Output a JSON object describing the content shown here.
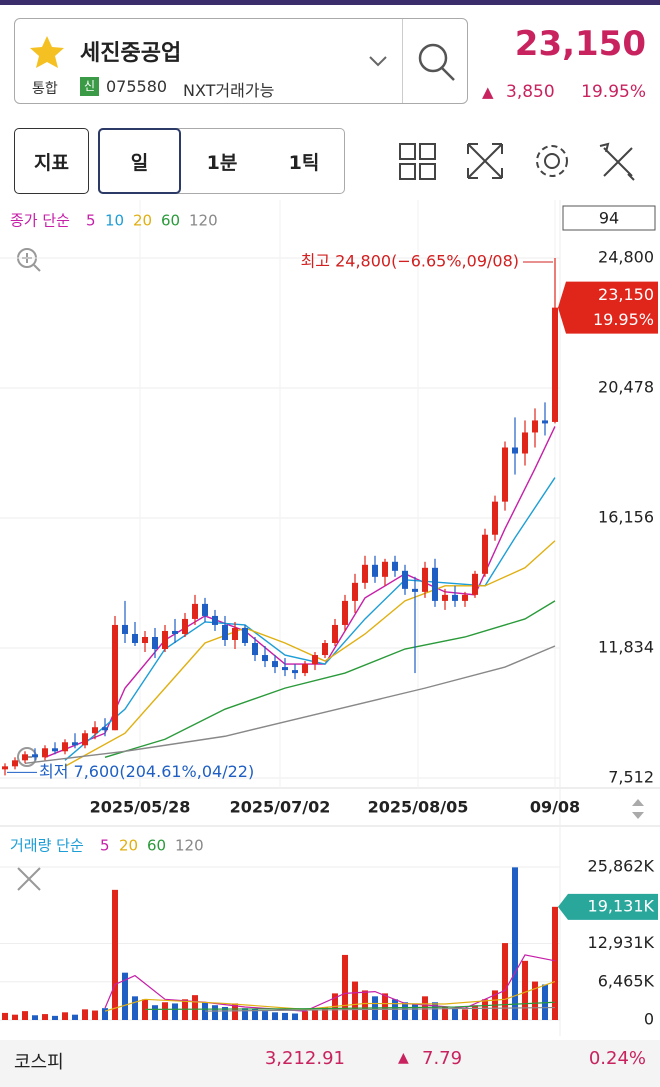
{
  "header": {
    "name": "세진중공업",
    "market": "통합",
    "badge": "신",
    "code": "075580",
    "nxt": "NXT거래가능",
    "price": "23,150",
    "change": "3,850",
    "change_pct": "19.95%"
  },
  "toolbar": {
    "buttons": [
      "지표",
      "일",
      "1분",
      "1틱"
    ],
    "count": "94"
  },
  "chart_data": [
    {
      "type": "candlestick",
      "legend_title": "종가 단순",
      "up_color": "#e0261b",
      "down_color": "#1f5fc4",
      "ohlc": [
        [
          7800,
          8000,
          7600,
          7900
        ],
        [
          7900,
          8200,
          7800,
          8100
        ],
        [
          8100,
          8400,
          8000,
          8300
        ],
        [
          8300,
          8500,
          8100,
          8200
        ],
        [
          8200,
          8600,
          8100,
          8500
        ],
        [
          8500,
          8700,
          8300,
          8400
        ],
        [
          8400,
          8800,
          8300,
          8700
        ],
        [
          8700,
          9000,
          8500,
          8600
        ],
        [
          8600,
          9100,
          8500,
          9000
        ],
        [
          9000,
          9400,
          8800,
          9200
        ],
        [
          9200,
          9500,
          8900,
          9100
        ],
        [
          9100,
          12900,
          9100,
          12600
        ],
        [
          12600,
          13400,
          12000,
          12300
        ],
        [
          12300,
          12700,
          11900,
          12000
        ],
        [
          12000,
          12400,
          11700,
          12200
        ],
        [
          12200,
          12500,
          11500,
          11800
        ],
        [
          11800,
          12600,
          11700,
          12400
        ],
        [
          12400,
          12800,
          12000,
          12300
        ],
        [
          12300,
          13000,
          12200,
          12800
        ],
        [
          12800,
          13600,
          12600,
          13300
        ],
        [
          13300,
          13500,
          12700,
          12900
        ],
        [
          12900,
          13100,
          12400,
          12600
        ],
        [
          12600,
          12900,
          11900,
          12100
        ],
        [
          12100,
          12700,
          11800,
          12500
        ],
        [
          12500,
          12600,
          11900,
          12000
        ],
        [
          12000,
          12200,
          11400,
          11600
        ],
        [
          11600,
          11900,
          11200,
          11400
        ],
        [
          11400,
          11600,
          11000,
          11200
        ],
        [
          11200,
          11500,
          10900,
          11100
        ],
        [
          11100,
          11300,
          10800,
          11000
        ],
        [
          11000,
          11400,
          10900,
          11300
        ],
        [
          11300,
          11700,
          11100,
          11600
        ],
        [
          11600,
          12100,
          11500,
          12000
        ],
        [
          12000,
          12800,
          11900,
          12600
        ],
        [
          12600,
          13600,
          12400,
          13400
        ],
        [
          13400,
          14300,
          13000,
          14000
        ],
        [
          14000,
          14900,
          13800,
          14600
        ],
        [
          14600,
          14900,
          14000,
          14200
        ],
        [
          14200,
          14800,
          13900,
          14700
        ],
        [
          14700,
          14900,
          14200,
          14400
        ],
        [
          14400,
          14600,
          13600,
          13800
        ],
        [
          13800,
          14200,
          11000,
          13700
        ],
        [
          13700,
          14700,
          13500,
          14500
        ],
        [
          14500,
          14800,
          13200,
          13400
        ],
        [
          13400,
          13800,
          13100,
          13600
        ],
        [
          13600,
          13900,
          13200,
          13400
        ],
        [
          13400,
          13700,
          13200,
          13600
        ],
        [
          13600,
          14400,
          13500,
          14300
        ],
        [
          14300,
          15800,
          14200,
          15600
        ],
        [
          15600,
          16900,
          15400,
          16700
        ],
        [
          16700,
          18700,
          16400,
          18500
        ],
        [
          18500,
          19500,
          17600,
          18300
        ],
        [
          18300,
          19400,
          17900,
          19000
        ],
        [
          19000,
          19800,
          18500,
          19400
        ],
        [
          19400,
          20000,
          18900,
          19300
        ],
        [
          19350,
          24800,
          19300,
          23150
        ]
      ],
      "xlim": [
        -0.5,
        55.5
      ],
      "xticks": [
        {
          "value": 13.5,
          "label": "2025/05/28"
        },
        {
          "value": 27.5,
          "label": "2025/07/02"
        },
        {
          "value": 41.3,
          "label": "2025/08/05"
        },
        {
          "value": 55,
          "label": "09/08"
        }
      ],
      "ylim": [
        7512,
        24800
      ],
      "yticks": [
        {
          "value": 7512,
          "label": "7,512"
        },
        {
          "value": 11834,
          "label": "11,834"
        },
        {
          "value": 16156,
          "label": "16,156"
        },
        {
          "value": 20478,
          "label": "20,478"
        },
        {
          "value": 24800,
          "label": "24,800"
        }
      ],
      "last": {
        "value": 23150,
        "label": "23,150",
        "pct": "19.95%"
      },
      "annotations": [
        {
          "text": "최고 24,800(−6.65%,09/08)",
          "x": 55,
          "y": 24800
        },
        {
          "text": "최저 7,600(204.61%,04/22)",
          "x": 0,
          "y": 7600
        }
      ],
      "series": [
        {
          "name": "5",
          "color": "#c61fa8",
          "x": [
            4,
            10,
            12,
            16,
            20,
            24,
            28,
            32,
            36,
            40,
            44,
            47,
            50,
            53,
            55
          ],
          "values": [
            8200,
            9000,
            10500,
            12100,
            12900,
            12400,
            11300,
            11300,
            13500,
            14300,
            13700,
            13600,
            15800,
            17800,
            19200
          ]
        },
        {
          "name": "10",
          "color": "#1d9ed6",
          "x": [
            6,
            12,
            16,
            20,
            24,
            28,
            32,
            36,
            40,
            44,
            48,
            51,
            55
          ],
          "values": [
            8100,
            9800,
            11800,
            12700,
            12600,
            11600,
            11300,
            12800,
            14100,
            14000,
            13900,
            15500,
            17500
          ]
        },
        {
          "name": "20",
          "color": "#e0b012",
          "x": [
            6,
            12,
            16,
            20,
            24,
            28,
            32,
            36,
            40,
            44,
            48,
            52,
            55
          ],
          "values": [
            7900,
            9000,
            10500,
            12000,
            12500,
            12000,
            11400,
            12300,
            13400,
            13900,
            13900,
            14500,
            15400
          ]
        },
        {
          "name": "60",
          "color": "#2a9a3a",
          "x": [
            10,
            16,
            22,
            28,
            34,
            40,
            46,
            52,
            55
          ],
          "values": [
            8200,
            8800,
            9800,
            10500,
            11000,
            11800,
            12200,
            12800,
            13400
          ]
        },
        {
          "name": "120",
          "color": "#888888",
          "x": [
            2,
            12,
            22,
            32,
            42,
            50,
            55
          ],
          "values": [
            8000,
            8400,
            8900,
            9700,
            10500,
            11200,
            11900
          ]
        }
      ]
    },
    {
      "type": "bar",
      "legend_title": "거래량 단순",
      "values": [
        1200,
        900,
        1500,
        800,
        1000,
        700,
        1300,
        900,
        1800,
        1600,
        2000,
        22000,
        8000,
        4000,
        3500,
        2500,
        3000,
        2800,
        3500,
        4200,
        3000,
        2500,
        2200,
        2800,
        2000,
        1800,
        1500,
        1300,
        1200,
        1100,
        1500,
        1700,
        2200,
        4500,
        11000,
        6500,
        5000,
        4000,
        4500,
        3500,
        3000,
        2800,
        4000,
        3000,
        2200,
        2000,
        1800,
        2500,
        3500,
        5000,
        13000,
        25800,
        10000,
        6500,
        6000,
        19131
      ],
      "last_label": "19,131K",
      "ylim": [
        0,
        25862
      ],
      "yticks": [
        0,
        {
          "value": 6465,
          "label": "6,465K"
        },
        {
          "value": 12931,
          "label": "12,931K"
        },
        {
          "value": 25862,
          "label": "25,862K"
        }
      ],
      "series": [
        {
          "name": "5",
          "color": "#c61fa8",
          "x": [
            10,
            11,
            13,
            16,
            20,
            24,
            30,
            34,
            37,
            40,
            46,
            50,
            52,
            55
          ],
          "values": [
            2000,
            6000,
            7500,
            3500,
            3000,
            2200,
            1500,
            4500,
            4800,
            2800,
            2000,
            5000,
            11000,
            10000
          ]
        },
        {
          "name": "20",
          "color": "#e0b012",
          "x": [
            10,
            14,
            22,
            30,
            36,
            44,
            50,
            55
          ],
          "values": [
            1500,
            3500,
            2800,
            1800,
            2800,
            2700,
            3500,
            6500
          ]
        },
        {
          "name": "60",
          "color": "#2a9a3a",
          "x": [
            14,
            30,
            45,
            55
          ],
          "values": [
            1800,
            1900,
            2200,
            3000
          ]
        },
        {
          "name": "120",
          "color": "#888888",
          "x": [
            20,
            55
          ],
          "values": [
            1500,
            2100
          ]
        }
      ]
    }
  ],
  "footer": {
    "index": "코스피",
    "value": "3,212.91",
    "change": "7.79",
    "pct": "0.24%"
  }
}
